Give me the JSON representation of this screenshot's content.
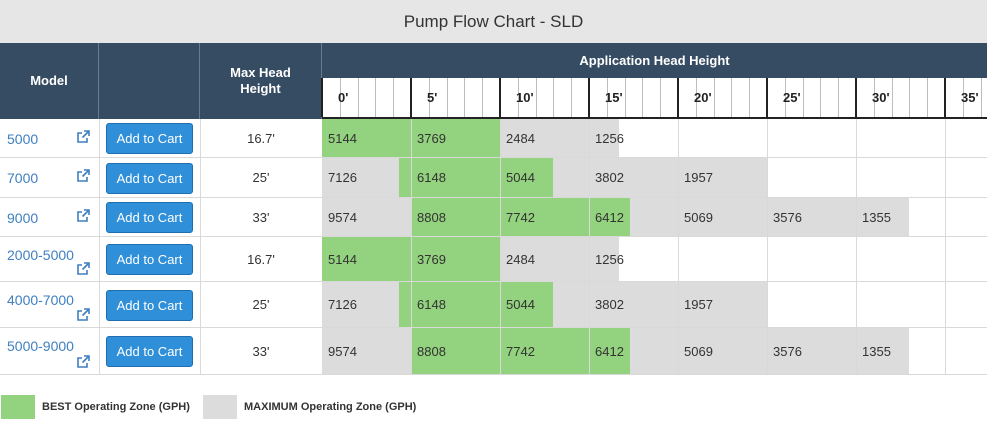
{
  "title": "Pump Flow Chart - SLD",
  "headers": {
    "model": "Model",
    "max_head": "Max Head Height",
    "application": "Application Head Height"
  },
  "head_ticks": [
    "0'",
    "5'",
    "10'",
    "15'",
    "20'",
    "25'",
    "30'",
    "35'"
  ],
  "add_to_cart_label": "Add to Cart",
  "rows": [
    {
      "model": "5000",
      "max_head": "16.7'",
      "flows": [
        "5144",
        "3769",
        "2484",
        "1256"
      ]
    },
    {
      "model": "7000",
      "max_head": "25'",
      "flows": [
        "7126",
        "6148",
        "5044",
        "3802",
        "1957"
      ]
    },
    {
      "model": "9000",
      "max_head": "33'",
      "flows": [
        "9574",
        "8808",
        "7742",
        "6412",
        "5069",
        "3576",
        "1355"
      ]
    },
    {
      "model": "2000-5000",
      "max_head": "16.7'",
      "flows": [
        "5144",
        "3769",
        "2484",
        "1256"
      ]
    },
    {
      "model": "4000-7000",
      "max_head": "25'",
      "flows": [
        "7126",
        "6148",
        "5044",
        "3802",
        "1957"
      ]
    },
    {
      "model": "5000-9000",
      "max_head": "33'",
      "flows": [
        "9574",
        "8808",
        "7742",
        "6412",
        "5069",
        "3576",
        "1355"
      ]
    }
  ],
  "zones": [
    {
      "best": [
        0,
        10
      ],
      "max": [
        10,
        16.7
      ]
    },
    {
      "best": [
        4.3,
        13.0
      ],
      "max": [
        0,
        25
      ]
    },
    {
      "best": [
        5,
        17.3
      ],
      "max": [
        0,
        33
      ]
    },
    {
      "best": [
        0,
        10
      ],
      "max": [
        10,
        16.7
      ]
    },
    {
      "best": [
        4.3,
        13.0
      ],
      "max": [
        0,
        25
      ]
    },
    {
      "best": [
        5,
        17.3
      ],
      "max": [
        0,
        33
      ]
    }
  ],
  "legend": {
    "best_label": "BEST Operating Zone (GPH)",
    "max_label": "MAXIMUM Operating Zone (GPH)",
    "best_color": "#93d27e",
    "max_color": "#dcdcdc"
  },
  "colors": {
    "header_bg": "#364c63",
    "button_bg": "#2f8fd8",
    "link": "#3f7fc0"
  }
}
